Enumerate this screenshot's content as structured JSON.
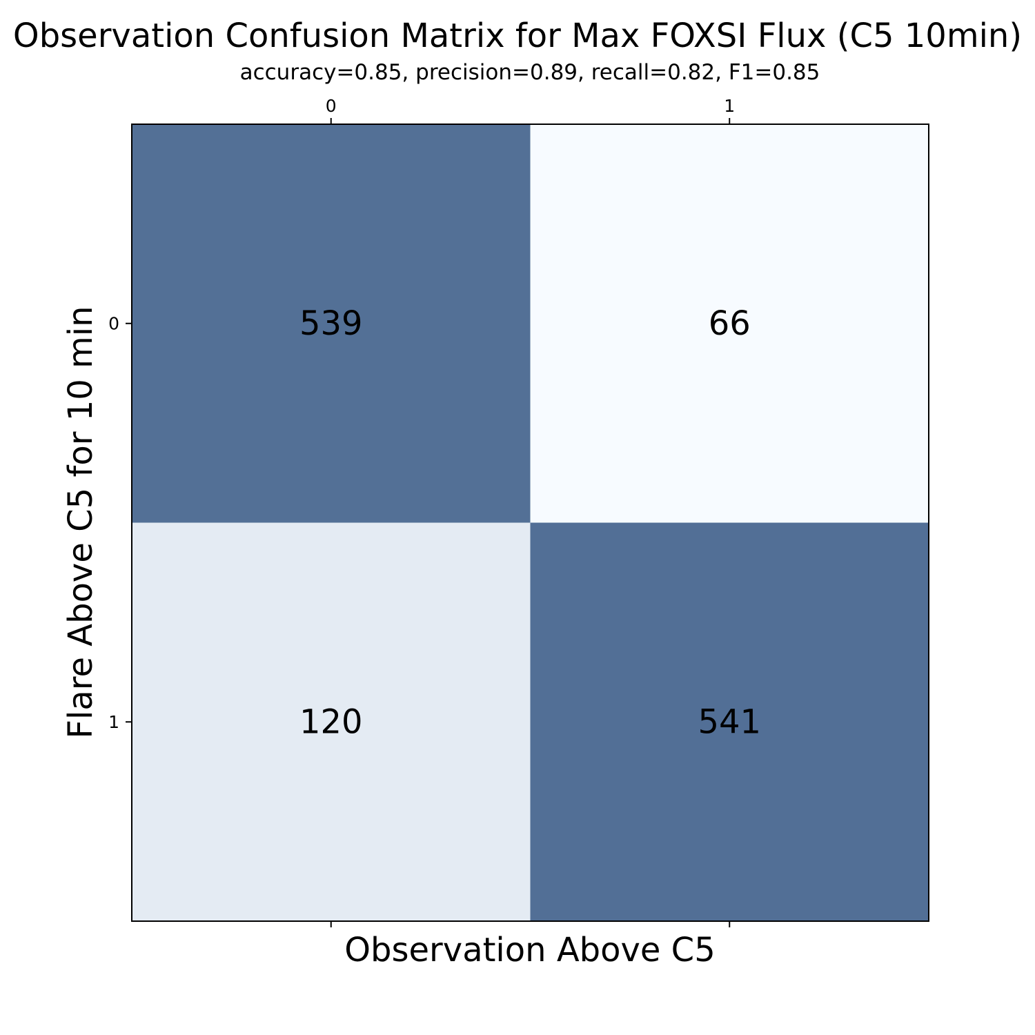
{
  "chart_data": {
    "type": "heatmap",
    "title": "Observation Confusion Matrix for Max FOXSI Flux (C5 10min)",
    "subtitle": "accuracy=0.85, precision=0.89, recall=0.82, F1=0.85",
    "xlabel": "Observation Above C5",
    "ylabel": "Flare Above C5 for 10 min",
    "x_categories": [
      "0",
      "1"
    ],
    "y_categories": [
      "0",
      "1"
    ],
    "matrix": [
      [
        539,
        66
      ],
      [
        120,
        541
      ]
    ],
    "colormap": "Blues",
    "color_low": "#f7fbff",
    "color_high": "#526f96",
    "grid": false,
    "x_ticks_position": "top"
  }
}
